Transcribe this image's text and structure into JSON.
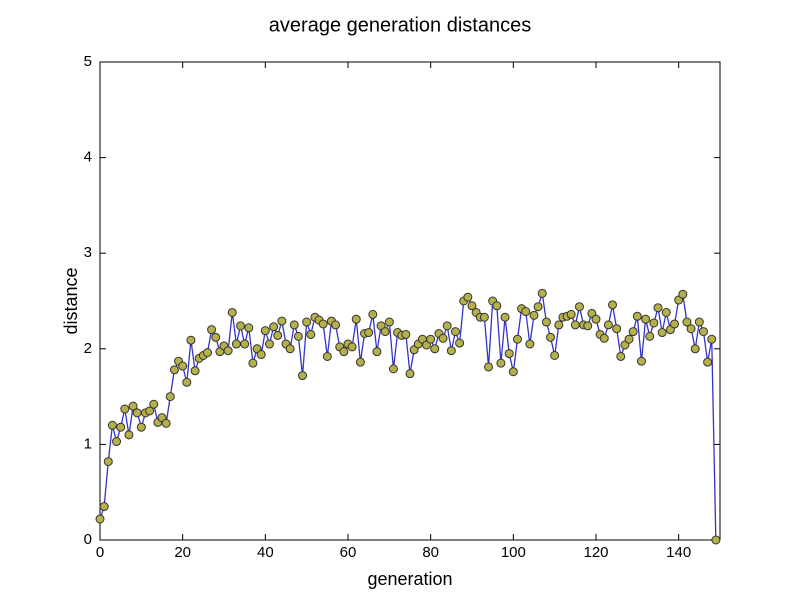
{
  "chart_data": {
    "type": "line",
    "title": "average generation distances",
    "x_label": "generation",
    "y_label": "distance",
    "x": [
      0,
      1,
      2,
      3,
      4,
      5,
      6,
      7,
      8,
      9,
      10,
      11,
      12,
      13,
      14,
      15,
      16,
      17,
      18,
      19,
      20,
      21,
      22,
      23,
      24,
      25,
      26,
      27,
      28,
      29,
      30,
      31,
      32,
      33,
      34,
      35,
      36,
      37,
      38,
      39,
      40,
      41,
      42,
      43,
      44,
      45,
      46,
      47,
      48,
      49,
      50,
      51,
      52,
      53,
      54,
      55,
      56,
      57,
      58,
      59,
      60,
      61,
      62,
      63,
      64,
      65,
      66,
      67,
      68,
      69,
      70,
      71,
      72,
      73,
      74,
      75,
      76,
      77,
      78,
      79,
      80,
      81,
      82,
      83,
      84,
      85,
      86,
      87,
      88,
      89,
      90,
      91,
      92,
      93,
      94,
      95,
      96,
      97,
      98,
      99,
      100,
      101,
      102,
      103,
      104,
      105,
      106,
      107,
      108,
      109,
      110,
      111,
      112,
      113,
      114,
      115,
      116,
      117,
      118,
      119,
      120,
      121,
      122,
      123,
      124,
      125,
      126,
      127,
      128,
      129,
      130,
      131,
      132,
      133,
      134,
      135,
      136,
      137,
      138,
      139,
      140,
      141,
      142,
      143,
      144,
      145,
      146,
      147,
      148,
      149
    ],
    "series": [
      {
        "color": "#3333cc",
        "marker_color": "#b5b04a",
        "values": [
          0.22,
          0.35,
          0.82,
          1.2,
          1.03,
          1.18,
          1.37,
          1.1,
          1.4,
          1.33,
          1.18,
          1.33,
          1.35,
          1.42,
          1.23,
          1.28,
          1.22,
          1.5,
          1.78,
          1.87,
          1.82,
          1.65,
          2.09,
          1.77,
          1.9,
          1.93,
          1.96,
          2.2,
          2.12,
          1.97,
          2.03,
          1.98,
          2.38,
          2.05,
          2.24,
          2.05,
          2.22,
          1.85,
          2.0,
          1.94,
          2.19,
          2.05,
          2.23,
          2.14,
          2.29,
          2.05,
          2.0,
          2.25,
          2.13,
          1.72,
          2.28,
          2.15,
          2.33,
          2.3,
          2.26,
          1.92,
          2.29,
          2.25,
          2.02,
          1.97,
          2.05,
          2.02,
          2.31,
          1.86,
          2.16,
          2.17,
          2.36,
          1.97,
          2.24,
          2.18,
          2.28,
          1.79,
          2.17,
          2.14,
          2.15,
          1.74,
          1.99,
          2.05,
          2.1,
          2.04,
          2.1,
          2.0,
          2.16,
          2.11,
          2.24,
          1.98,
          2.18,
          2.06,
          2.5,
          2.54,
          2.45,
          2.38,
          2.33,
          2.33,
          1.81,
          2.5,
          2.45,
          1.85,
          2.33,
          1.95,
          1.76,
          2.1,
          2.42,
          2.39,
          2.05,
          2.35,
          2.44,
          2.58,
          2.28,
          2.12,
          1.93,
          2.25,
          2.33,
          2.34,
          2.36,
          2.25,
          2.44,
          2.25,
          2.24,
          2.37,
          2.31,
          2.15,
          2.11,
          2.25,
          2.46,
          2.21,
          1.92,
          2.04,
          2.1,
          2.18,
          2.34,
          1.87,
          2.31,
          2.13,
          2.27,
          2.43,
          2.17,
          2.38,
          2.2,
          2.26,
          2.51,
          2.57,
          2.28,
          2.21,
          2.0,
          2.28,
          2.18,
          1.86,
          2.1,
          0.0
        ]
      }
    ],
    "xlim": [
      0,
      150
    ],
    "xticks": [
      0,
      20,
      40,
      60,
      80,
      100,
      120,
      140
    ],
    "ylim": [
      0,
      5
    ],
    "yticks": [
      0,
      1,
      2,
      3,
      4,
      5
    ],
    "grid": false
  }
}
